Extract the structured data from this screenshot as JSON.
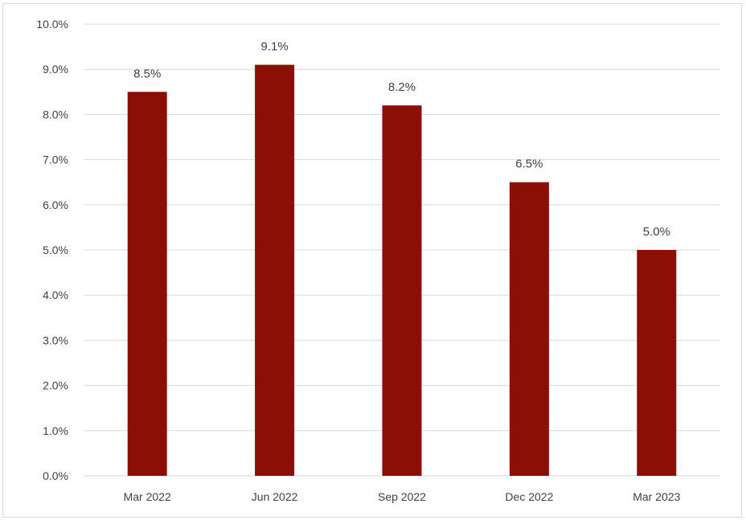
{
  "chart_data": {
    "type": "bar",
    "categories": [
      "Mar 2022",
      "Jun 2022",
      "Sep 2022",
      "Dec 2022",
      "Mar 2023"
    ],
    "values": [
      8.5,
      9.1,
      8.2,
      6.5,
      5.0
    ],
    "data_labels": [
      "8.5%",
      "9.1%",
      "8.2%",
      "6.5%",
      "5.0%"
    ],
    "y_ticks": [
      "0.0%",
      "1.0%",
      "2.0%",
      "3.0%",
      "4.0%",
      "5.0%",
      "6.0%",
      "7.0%",
      "8.0%",
      "9.0%",
      "10.0%"
    ],
    "ylim": [
      0,
      10
    ],
    "y_unit": "%",
    "grid": true,
    "legend": "none",
    "title": "",
    "xlabel": "",
    "ylabel": "",
    "colors": {
      "bar": "#8B0F04",
      "grid": "#d9d9d9",
      "text": "#404040",
      "border": "#d9d9d9"
    }
  }
}
